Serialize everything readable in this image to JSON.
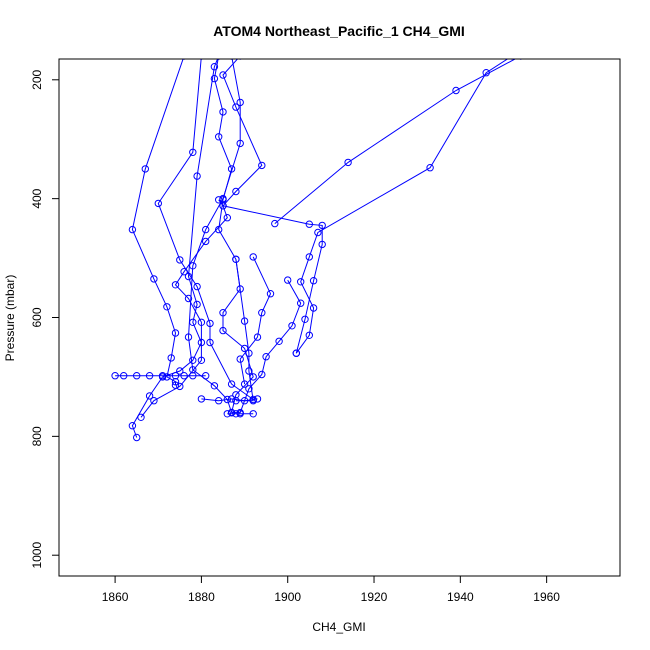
{
  "chart_data": {
    "type": "line",
    "title": "ATOM4 Northeast_Pacific_1 CH4_GMI",
    "xlabel": "CH4_GMI",
    "ylabel": "Pressure (mbar)",
    "xlim": [
      1847,
      1977
    ],
    "ylim": [
      1035,
      165
    ],
    "y_reversed": true,
    "grid": false,
    "legend": "none",
    "marker": "open-circle",
    "colors": {
      "series": "#0000ff",
      "axes": "#000000"
    },
    "x_ticks": [
      {
        "value": 1860,
        "label": "1860"
      },
      {
        "value": 1880,
        "label": "1880"
      },
      {
        "value": 1900,
        "label": "1900"
      },
      {
        "value": 1920,
        "label": "1920"
      },
      {
        "value": 1940,
        "label": "1940"
      },
      {
        "value": 1960,
        "label": "1960"
      }
    ],
    "y_ticks": [
      {
        "value": 200,
        "label": "200"
      },
      {
        "value": 400,
        "label": "400"
      },
      {
        "value": 600,
        "label": "600"
      },
      {
        "value": 800,
        "label": "800"
      },
      {
        "value": 1000,
        "label": "1000"
      }
    ],
    "series": [
      {
        "points": [
          [
            1884,
            160
          ],
          [
            1883,
            198
          ],
          [
            1885,
            254
          ],
          [
            1884,
            296
          ],
          [
            1887,
            350
          ],
          [
            1885,
            402
          ],
          [
            1884,
            452
          ],
          [
            1888,
            502
          ],
          [
            1889,
            552
          ],
          [
            1885,
            592
          ],
          [
            1885,
            622
          ],
          [
            1890,
            652
          ],
          [
            1892,
            700
          ],
          [
            1888,
            730
          ],
          [
            1887,
            760
          ]
        ]
      },
      {
        "points": [
          [
            1887,
            160
          ],
          [
            1889,
            238
          ],
          [
            1889,
            307
          ],
          [
            1885,
            400
          ],
          [
            1881,
            452
          ],
          [
            1878,
            513
          ],
          [
            1877,
            633
          ],
          [
            1878,
            688
          ],
          [
            1883,
            715
          ],
          [
            1886,
            738
          ],
          [
            1887,
            760
          ]
        ]
      },
      {
        "points": [
          [
            1876,
            160
          ],
          [
            1867,
            350
          ],
          [
            1864,
            452
          ],
          [
            1869,
            535
          ],
          [
            1872,
            582
          ],
          [
            1874,
            626
          ],
          [
            1873,
            668
          ],
          [
            1872,
            700
          ],
          [
            1874,
            708
          ],
          [
            1874,
            714
          ]
        ]
      },
      {
        "points": [
          [
            1880,
            160
          ],
          [
            1878,
            322
          ],
          [
            1870,
            408
          ],
          [
            1875,
            503
          ],
          [
            1879,
            548
          ],
          [
            1882,
            610
          ],
          [
            1882,
            642
          ],
          [
            1887,
            712
          ],
          [
            1892,
            738
          ]
        ]
      },
      {
        "points": [
          [
            1889,
            160
          ],
          [
            1885,
            192
          ],
          [
            1888,
            246
          ],
          [
            1894,
            344
          ],
          [
            1888,
            388
          ],
          [
            1885,
            412
          ],
          [
            1886,
            432
          ],
          [
            1881,
            472
          ],
          [
            1876,
            523
          ],
          [
            1874,
            545
          ],
          [
            1877,
            568
          ],
          [
            1880,
            608
          ],
          [
            1880,
            672
          ],
          [
            1875,
            716
          ],
          [
            1869,
            740
          ],
          [
            1866,
            768
          ]
        ]
      },
      {
        "points": [
          [
            1865,
            802
          ],
          [
            1864,
            782
          ],
          [
            1868,
            732
          ],
          [
            1871,
            700
          ],
          [
            1875,
            690
          ],
          [
            1878,
            672
          ],
          [
            1880,
            642
          ],
          [
            1878,
            608
          ],
          [
            1879,
            578
          ],
          [
            1877,
            531
          ],
          [
            1879,
            362
          ],
          [
            1883,
            178
          ],
          [
            1884,
            160
          ]
        ]
      },
      {
        "points": [
          [
            1900,
            537
          ],
          [
            1903,
            576
          ],
          [
            1901,
            614
          ],
          [
            1898,
            640
          ],
          [
            1895,
            666
          ],
          [
            1894,
            696
          ],
          [
            1891,
            720
          ],
          [
            1889,
            760
          ],
          [
            1887,
            760
          ]
        ]
      },
      {
        "points": [
          [
            1902,
            660
          ],
          [
            1904,
            603
          ],
          [
            1906,
            538
          ],
          [
            1908,
            477
          ],
          [
            1908,
            445
          ],
          [
            1905,
            443
          ],
          [
            1885,
            412
          ],
          [
            1884,
            402
          ]
        ]
      },
      {
        "points": [
          [
            1888,
            740
          ],
          [
            1892,
            740
          ],
          [
            1891,
            690
          ],
          [
            1891,
            660
          ],
          [
            1890,
            606
          ],
          [
            1888,
            502
          ]
        ]
      },
      {
        "points": [
          [
            1892,
            498
          ],
          [
            1896,
            560
          ],
          [
            1894,
            592
          ],
          [
            1893,
            633
          ],
          [
            1889,
            670
          ],
          [
            1890,
            712
          ]
        ]
      },
      {
        "points": [
          [
            1902,
            660
          ],
          [
            1905,
            630
          ],
          [
            1906,
            584
          ],
          [
            1903,
            540
          ],
          [
            1905,
            498
          ],
          [
            1907,
            457
          ],
          [
            1933,
            348
          ],
          [
            1946,
            188
          ],
          [
            1952,
            160
          ]
        ]
      },
      {
        "points": [
          [
            1897,
            442
          ],
          [
            1914,
            339
          ],
          [
            1939,
            218
          ],
          [
            1954,
            160
          ]
        ]
      },
      {
        "points": [
          [
            1860,
            698
          ],
          [
            1862,
            698
          ],
          [
            1865,
            698
          ],
          [
            1868,
            698
          ],
          [
            1871,
            698
          ],
          [
            1874,
            698
          ],
          [
            1876,
            698
          ],
          [
            1878,
            698
          ],
          [
            1881,
            698
          ]
        ]
      },
      {
        "points": [
          [
            1880,
            737
          ],
          [
            1884,
            740
          ],
          [
            1887,
            737
          ],
          [
            1890,
            740
          ],
          [
            1893,
            737
          ]
        ]
      },
      {
        "points": [
          [
            1886,
            762
          ],
          [
            1888,
            762
          ],
          [
            1889,
            762
          ],
          [
            1892,
            762
          ]
        ]
      }
    ]
  }
}
